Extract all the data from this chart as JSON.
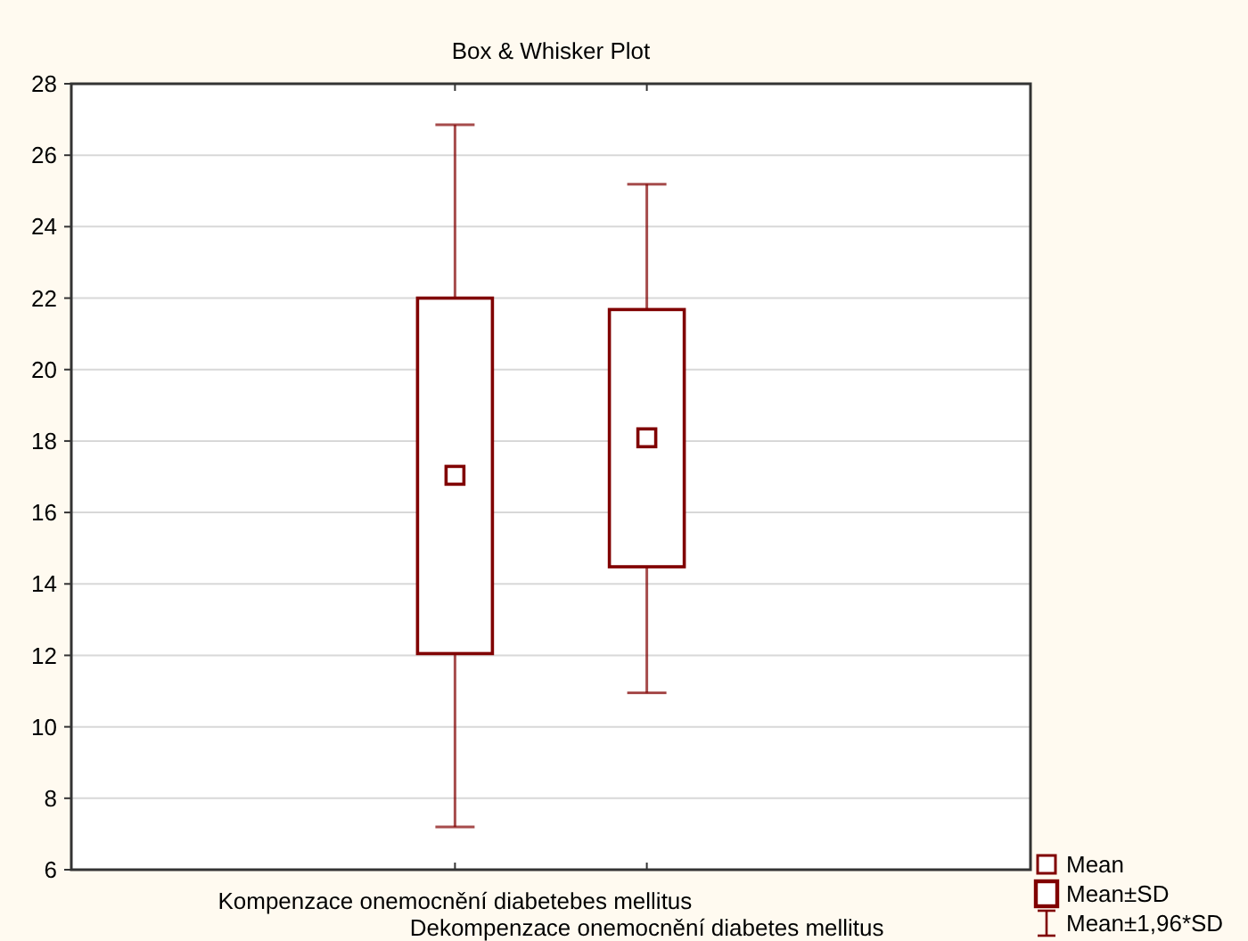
{
  "chart_data": {
    "type": "box",
    "title": "Box & Whisker Plot",
    "categories": [
      "Kompenzace onemocnění diabetebes mellitus",
      "Dekompenzace onemocnění diabetes mellitus"
    ],
    "boxes": [
      {
        "low": 7.2,
        "q1": 12.05,
        "q3": 22.0,
        "high": 26.85,
        "mean": 17.04
      },
      {
        "low": 10.95,
        "q1": 14.48,
        "q3": 21.68,
        "high": 25.19,
        "mean": 18.09
      }
    ],
    "color": "#800000",
    "ylim": [
      6,
      28
    ],
    "yticks": [
      6,
      8,
      10,
      12,
      14,
      16,
      18,
      20,
      22,
      24,
      26,
      28
    ],
    "grid": "y",
    "annotations": [
      "Mean",
      "Mean±SD",
      "Mean±1,96*SD"
    ]
  }
}
